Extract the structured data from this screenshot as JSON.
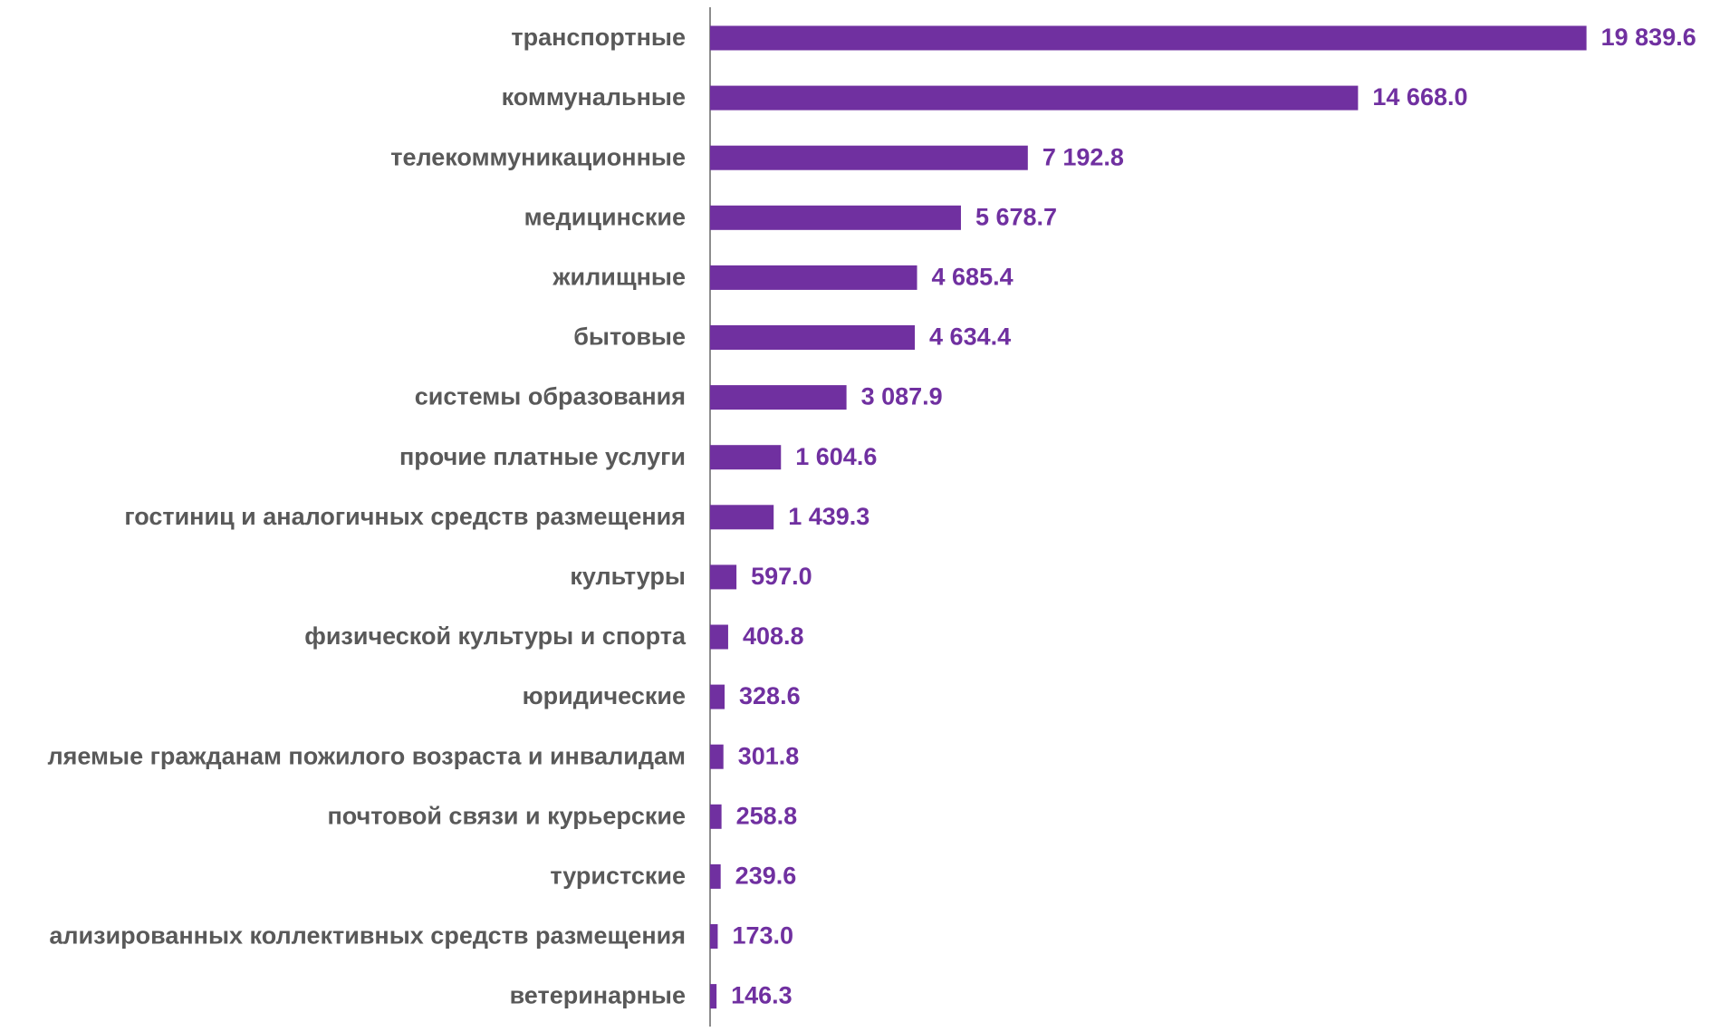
{
  "chart_data": {
    "type": "bar",
    "orientation": "horizontal",
    "categories": [
      "транспортные",
      "коммунальные",
      "телекоммуникационные",
      "медицинские",
      "жилищные",
      "бытовые",
      "системы образования",
      "прочие платные услуги",
      "гостиниц и аналогичных средств размещения",
      "культуры",
      "физической культуры и спорта",
      "юридические",
      "ляемые гражданам пожилого возраста и инвалидам",
      "почтовой связи и курьерские",
      "туристские",
      "ализированных коллективных средств размещения",
      "ветеринарные"
    ],
    "values": [
      19839.6,
      14668.0,
      7192.8,
      5678.7,
      4685.4,
      4634.4,
      3087.9,
      1604.6,
      1439.3,
      597.0,
      408.8,
      328.6,
      301.8,
      258.8,
      239.6,
      173.0,
      146.3
    ],
    "value_labels": [
      "19 839.6",
      "14 668.0",
      "7 192.8",
      "5 678.7",
      "4 685.4",
      "4 634.4",
      "3 087.9",
      "1 604.6",
      "1 439.3",
      "597.0",
      "408.8",
      "328.6",
      "301.8",
      "258.8",
      "239.6",
      "173.0",
      "146.3"
    ],
    "color": "#7030a0",
    "xlim": [
      0,
      22000
    ]
  }
}
